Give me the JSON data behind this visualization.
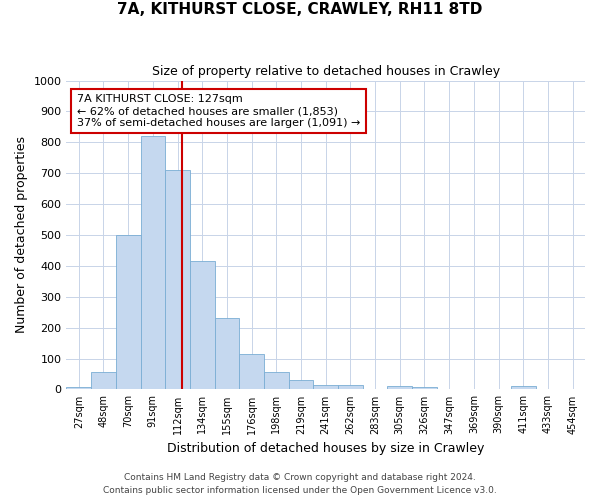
{
  "title": "7A, KITHURST CLOSE, CRAWLEY, RH11 8TD",
  "subtitle": "Size of property relative to detached houses in Crawley",
  "xlabel": "Distribution of detached houses by size in Crawley",
  "ylabel": "Number of detached properties",
  "bar_color": "#c5d8ef",
  "bar_edge_color": "#7aadd4",
  "background_color": "#ffffff",
  "grid_color": "#c8d4e8",
  "categories": [
    "27sqm",
    "48sqm",
    "70sqm",
    "91sqm",
    "112sqm",
    "134sqm",
    "155sqm",
    "176sqm",
    "198sqm",
    "219sqm",
    "241sqm",
    "262sqm",
    "283sqm",
    "305sqm",
    "326sqm",
    "347sqm",
    "369sqm",
    "390sqm",
    "411sqm",
    "433sqm",
    "454sqm"
  ],
  "values": [
    8,
    57,
    500,
    820,
    710,
    415,
    230,
    115,
    55,
    30,
    15,
    15,
    0,
    12,
    8,
    0,
    0,
    0,
    10,
    0,
    0
  ],
  "ylim": [
    0,
    1000
  ],
  "yticks": [
    0,
    100,
    200,
    300,
    400,
    500,
    600,
    700,
    800,
    900,
    1000
  ],
  "annotation_title": "7A KITHURST CLOSE: 127sqm",
  "annotation_line1": "← 62% of detached houses are smaller (1,853)",
  "annotation_line2": "37% of semi-detached houses are larger (1,091) →",
  "vline_color": "#cc0000",
  "annotation_box_edge": "#cc0000",
  "footer_line1": "Contains HM Land Registry data © Crown copyright and database right 2024.",
  "footer_line2": "Contains public sector information licensed under the Open Government Licence v3.0.",
  "title_fontsize": 11,
  "subtitle_fontsize": 9,
  "ylabel_fontsize": 9,
  "xlabel_fontsize": 9
}
